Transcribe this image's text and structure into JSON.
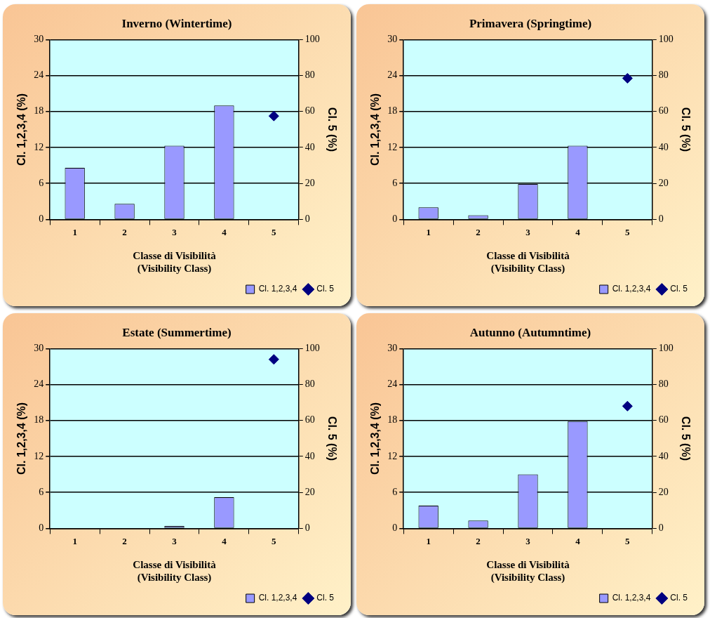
{
  "chart_data": [
    {
      "type": "bar",
      "title": "Inverno (Wintertime)",
      "xlabel": "Classe di Visibilità\n(Visibility Class)",
      "ylabel": "Cl. 1,2,3,4 (%)",
      "y2label": "Cl. 5 (%)",
      "categories": [
        "1",
        "2",
        "3",
        "4",
        "5"
      ],
      "series": [
        {
          "name": "Cl. 1,2,3,4",
          "color": "#9999ff",
          "values": [
            8.6,
            2.6,
            12.3,
            19.0,
            null
          ]
        },
        {
          "name": "Cl. 5",
          "type": "line",
          "axis": "y2",
          "color": "#000080",
          "values": [
            null,
            null,
            null,
            null,
            57.5
          ]
        }
      ],
      "ylim": [
        0,
        30
      ],
      "yticks": [
        0,
        6,
        12,
        18,
        24,
        30
      ],
      "y2lim": [
        0,
        100
      ],
      "y2ticks": [
        0,
        20,
        40,
        60,
        80,
        100
      ],
      "grid": "y",
      "legend": "bottom right",
      "marker": "diamond"
    },
    {
      "type": "bar",
      "title": "Primavera (Springtime)",
      "xlabel": "Classe di Visibilità\n(Visibility Class)",
      "ylabel": "Cl. 1,2,3,4 (%)",
      "y2label": "Cl. 5 (%)",
      "categories": [
        "1",
        "2",
        "3",
        "4",
        "5"
      ],
      "series": [
        {
          "name": "Cl. 1,2,3,4",
          "color": "#9999ff",
          "values": [
            2.0,
            0.7,
            5.9,
            12.3,
            null
          ]
        },
        {
          "name": "Cl. 5",
          "type": "line",
          "axis": "y2",
          "color": "#000080",
          "values": [
            null,
            null,
            null,
            null,
            78.5
          ]
        }
      ],
      "ylim": [
        0,
        30
      ],
      "yticks": [
        0,
        6,
        12,
        18,
        24,
        30
      ],
      "y2lim": [
        0,
        100
      ],
      "y2ticks": [
        0,
        20,
        40,
        60,
        80,
        100
      ],
      "grid": "y",
      "legend": "bottom right",
      "marker": "diamond"
    },
    {
      "type": "bar",
      "title": "Estate (Summertime)",
      "xlabel": "Classe di Visibilità\n(Visibility Class)",
      "ylabel": "Cl. 1,2,3,4 (%)",
      "y2label": "Cl. 5 (%)",
      "categories": [
        "1",
        "2",
        "3",
        "4",
        "5"
      ],
      "series": [
        {
          "name": "Cl. 1,2,3,4",
          "color": "#9999ff",
          "values": [
            0,
            0,
            0.4,
            5.2,
            null
          ]
        },
        {
          "name": "Cl. 5",
          "type": "line",
          "axis": "y2",
          "color": "#000080",
          "values": [
            null,
            null,
            null,
            null,
            94
          ]
        }
      ],
      "ylim": [
        0,
        30
      ],
      "yticks": [
        0,
        6,
        12,
        18,
        24,
        30
      ],
      "y2lim": [
        0,
        100
      ],
      "y2ticks": [
        0,
        20,
        40,
        60,
        80,
        100
      ],
      "grid": "y",
      "legend": "bottom right",
      "marker": "diamond"
    },
    {
      "type": "bar",
      "title": "Autunno (Autumntime)",
      "xlabel": "Classe di Visibilità\n(Visibility Class)",
      "ylabel": "Cl. 1,2,3,4 (%)",
      "y2label": "Cl. 5 (%)",
      "categories": [
        "1",
        "2",
        "3",
        "4",
        "5"
      ],
      "series": [
        {
          "name": "Cl. 1,2,3,4",
          "color": "#9999ff",
          "values": [
            3.8,
            1.3,
            9.0,
            17.9,
            null
          ]
        },
        {
          "name": "Cl. 5",
          "type": "line",
          "axis": "y2",
          "color": "#000080",
          "values": [
            null,
            null,
            null,
            null,
            68
          ]
        }
      ],
      "ylim": [
        0,
        30
      ],
      "yticks": [
        0,
        6,
        12,
        18,
        24,
        30
      ],
      "y2lim": [
        0,
        100
      ],
      "y2ticks": [
        0,
        20,
        40,
        60,
        80,
        100
      ],
      "grid": "y",
      "legend": "bottom right",
      "marker": "diamond"
    }
  ]
}
